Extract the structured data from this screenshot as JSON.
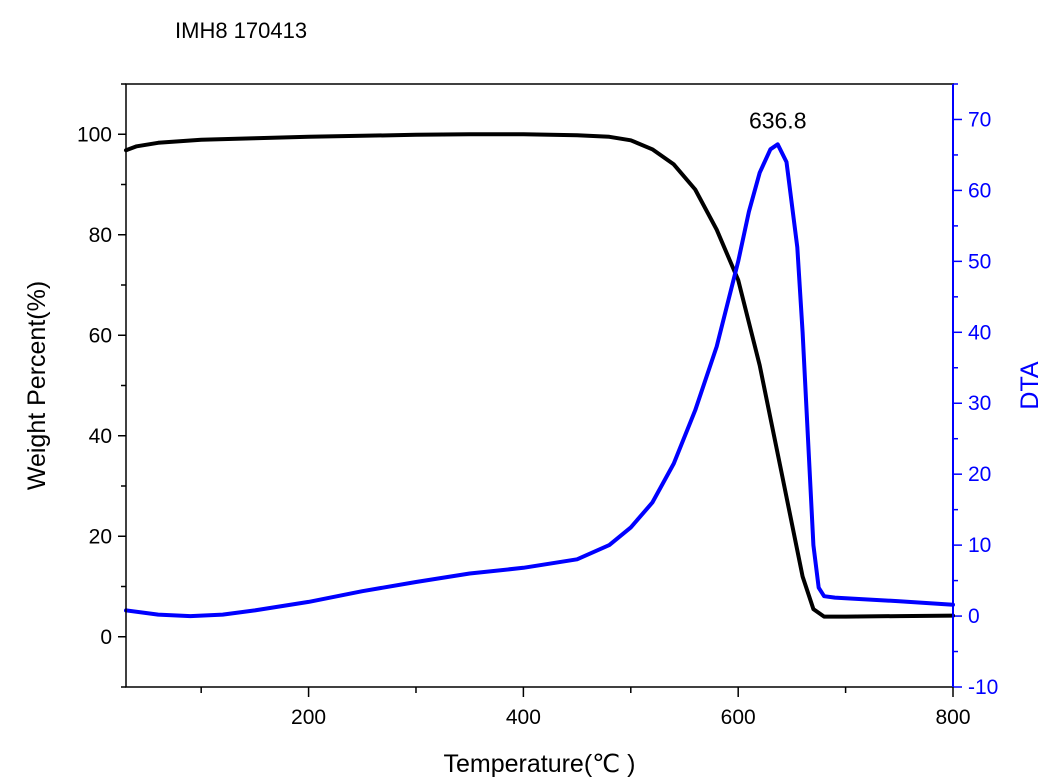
{
  "chart_data": {
    "type": "line",
    "title": "IMH8  170413",
    "xlabel": "Temperature(℃ )",
    "ylabel_left": "Weight Percent(%)",
    "ylabel_right": "DTA",
    "xlim": [
      30,
      800
    ],
    "ylim_left": [
      -10,
      110
    ],
    "ylim_right": [
      -10,
      75
    ],
    "x_ticks": [
      200,
      400,
      600,
      800
    ],
    "y_ticks_left": [
      0,
      20,
      40,
      60,
      80,
      100
    ],
    "y_ticks_right": [
      -10,
      0,
      10,
      20,
      30,
      40,
      50,
      60,
      70
    ],
    "grid": false,
    "colors": {
      "weight": "#000000",
      "dta": "#0000ff",
      "axis_right": "#0000ff"
    },
    "annotations": [
      {
        "text": "636.8",
        "x": 636.8,
        "axis": "right",
        "y": 66.5
      }
    ],
    "series": [
      {
        "axis": "left",
        "color": "#000000",
        "x": [
          30,
          40,
          60,
          80,
          100,
          150,
          200,
          250,
          300,
          350,
          400,
          450,
          480,
          500,
          520,
          540,
          560,
          580,
          600,
          620,
          640,
          660,
          670,
          680,
          690,
          700,
          750,
          800
        ],
        "y": [
          96.8,
          97.6,
          98.3,
          98.6,
          98.9,
          99.2,
          99.5,
          99.7,
          99.9,
          100.0,
          100.0,
          99.8,
          99.5,
          98.8,
          97.0,
          94.0,
          89.0,
          81.0,
          71.0,
          54.0,
          33.0,
          12.0,
          5.5,
          4.0,
          4.0,
          4.0,
          4.1,
          4.2
        ]
      },
      {
        "axis": "right",
        "color": "#0000ff",
        "x": [
          30,
          60,
          90,
          120,
          150,
          200,
          250,
          300,
          350,
          400,
          450,
          480,
          500,
          520,
          540,
          560,
          580,
          600,
          610,
          620,
          630,
          636.8,
          645,
          655,
          660,
          665,
          670,
          675,
          680,
          690,
          700,
          750,
          800
        ],
        "y": [
          0.8,
          0.2,
          0.0,
          0.2,
          0.8,
          2.0,
          3.5,
          4.8,
          6.0,
          6.8,
          8.0,
          10.0,
          12.5,
          16.0,
          21.5,
          29.0,
          38.0,
          50.0,
          57.0,
          62.5,
          65.8,
          66.5,
          64.0,
          52.0,
          40.0,
          25.0,
          10.0,
          4.0,
          2.8,
          2.6,
          2.5,
          2.1,
          1.6
        ]
      }
    ]
  }
}
